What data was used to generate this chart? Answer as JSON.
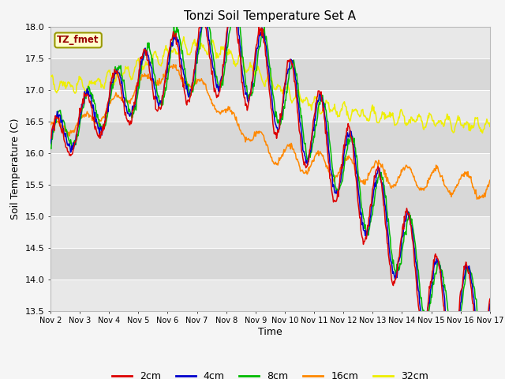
{
  "title": "Tonzi Soil Temperature Set A",
  "xlabel": "Time",
  "ylabel": "Soil Temperature (C)",
  "ylim": [
    13.5,
    18.0
  ],
  "yticks": [
    13.5,
    14.0,
    14.5,
    15.0,
    15.5,
    16.0,
    16.5,
    17.0,
    17.5,
    18.0
  ],
  "date_labels": [
    "Nov 2",
    "Nov 3",
    "Nov 4",
    "Nov 5",
    "Nov 6",
    "Nov 7",
    "Nov 8",
    "Nov 9",
    "Nov 10",
    "Nov 11",
    "Nov 12",
    "Nov 13",
    "Nov 14",
    "Nov 15",
    "Nov 16",
    "Nov 17"
  ],
  "colors": {
    "2cm": "#dd0000",
    "4cm": "#0000cc",
    "8cm": "#00bb00",
    "16cm": "#ff8800",
    "32cm": "#eeee00"
  },
  "legend_label": "TZ_fmet",
  "n_points": 720
}
